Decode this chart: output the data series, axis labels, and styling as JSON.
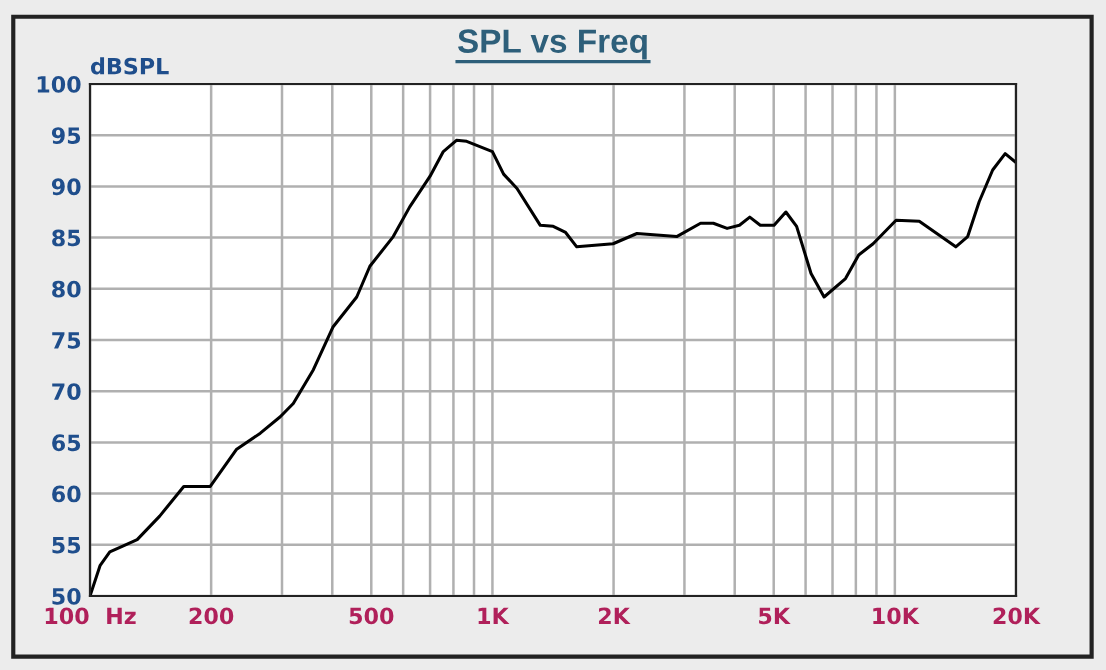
{
  "chart_data": {
    "type": "line",
    "title": "SPL vs Freq",
    "ylabel": "dBSPL",
    "log": "x",
    "xlim": [
      100,
      20000
    ],
    "ylim": [
      50,
      100
    ],
    "xticks": [
      {
        "value": 100,
        "label": "100  Hz"
      },
      200,
      {
        "value": 300,
        "label": null
      },
      {
        "value": 400,
        "label": null
      },
      500,
      {
        "value": 600,
        "label": null
      },
      {
        "value": 700,
        "label": null
      },
      {
        "value": 800,
        "label": null
      },
      {
        "value": 900,
        "label": null
      },
      {
        "value": 1000,
        "label": "1K"
      },
      {
        "value": 2000,
        "label": "2K"
      },
      {
        "value": 3000,
        "label": null
      },
      {
        "value": 4000,
        "label": null
      },
      {
        "value": 5000,
        "label": "5K"
      },
      {
        "value": 6000,
        "label": null
      },
      {
        "value": 7000,
        "label": null
      },
      {
        "value": 8000,
        "label": null
      },
      {
        "value": 9000,
        "label": null
      },
      {
        "value": 10000,
        "label": "10K"
      },
      {
        "value": 20000,
        "label": "20K"
      }
    ],
    "yticks": [
      50,
      55,
      60,
      65,
      70,
      75,
      80,
      85,
      90,
      95,
      100
    ],
    "grid": true,
    "marker": "none",
    "line_style": "solid",
    "series": [
      {
        "color": "#000000",
        "x": [
          100,
          106,
          112,
          121,
          131,
          149,
          171,
          199,
          231,
          265,
          297,
          320,
          359,
          402,
          460,
          496,
          567,
          623,
          700,
          755,
          814,
          863,
          1000,
          1066,
          1151,
          1315,
          1416,
          1520,
          1620,
          1994,
          2286,
          2870,
          3290,
          3540,
          3830,
          4110,
          4360,
          4630,
          5010,
          5360,
          5700,
          6190,
          6670,
          7540,
          8130,
          8830,
          10070,
          11500,
          14170,
          15170,
          16200,
          17500,
          18800,
          19900
        ],
        "values": [
          50.0,
          53.0,
          54.3,
          54.9,
          55.5,
          57.8,
          60.7,
          60.7,
          64.3,
          65.9,
          67.5,
          68.8,
          72.1,
          76.3,
          79.2,
          82.2,
          85.1,
          88.0,
          91.0,
          93.4,
          94.5,
          94.4,
          93.4,
          91.2,
          89.8,
          86.2,
          86.1,
          85.5,
          84.1,
          84.4,
          85.4,
          85.1,
          86.4,
          86.4,
          85.9,
          86.2,
          87.0,
          86.2,
          86.2,
          87.5,
          86.1,
          81.5,
          79.2,
          81.0,
          83.3,
          84.4,
          86.7,
          86.6,
          84.1,
          85.1,
          88.5,
          91.6,
          93.2,
          92.4
        ]
      }
    ]
  }
}
